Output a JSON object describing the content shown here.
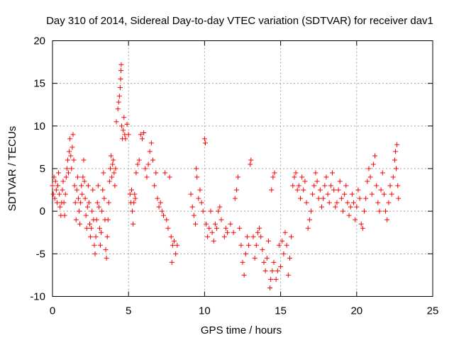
{
  "chart_data": {
    "type": "scatter",
    "title": "Day 310 of 2014, Sidereal Day-to-day VTEC variation (SDTVAR) for receiver dav1",
    "xlabel": "GPS time / hours",
    "ylabel": "SDTVAR / TECUs",
    "xlim": [
      0,
      25
    ],
    "ylim": [
      -10,
      20
    ],
    "xticks": [
      0,
      5,
      10,
      15,
      20,
      25
    ],
    "yticks": [
      -10,
      -5,
      0,
      5,
      10,
      15,
      20
    ],
    "xtick_labels": [
      "0",
      "5",
      "10",
      "15",
      "20",
      "25"
    ],
    "ytick_labels": [
      "-10",
      "-5",
      "0",
      "5",
      "10",
      "15",
      "20"
    ],
    "grid": true,
    "marker": "+",
    "color": "#ff0000",
    "series": [
      {
        "name": "SDTVAR",
        "points": [
          [
            0.0,
            3.0
          ],
          [
            0.05,
            2.0
          ],
          [
            0.1,
            4.0
          ],
          [
            0.15,
            1.5
          ],
          [
            0.2,
            3.5
          ],
          [
            0.25,
            2.5
          ],
          [
            0.3,
            1.0
          ],
          [
            0.35,
            3.0
          ],
          [
            0.4,
            4.5
          ],
          [
            0.45,
            2.0
          ],
          [
            0.5,
            0.5
          ],
          [
            0.55,
            -0.5
          ],
          [
            0.6,
            1.0
          ],
          [
            0.65,
            2.5
          ],
          [
            0.7,
            3.5
          ],
          [
            0.75,
            1.0
          ],
          [
            0.8,
            -0.5
          ],
          [
            0.85,
            2.0
          ],
          [
            0.9,
            4.0
          ],
          [
            0.95,
            5.0
          ],
          [
            1.0,
            6.0
          ],
          [
            1.05,
            4.5
          ],
          [
            1.1,
            7.0
          ],
          [
            1.15,
            8.5
          ],
          [
            1.2,
            6.5
          ],
          [
            1.25,
            5.0
          ],
          [
            1.3,
            7.5
          ],
          [
            1.35,
            9.0
          ],
          [
            1.4,
            6.0
          ],
          [
            1.45,
            3.0
          ],
          [
            1.5,
            1.0
          ],
          [
            1.55,
            -1.0
          ],
          [
            1.6,
            2.5
          ],
          [
            1.65,
            4.0
          ],
          [
            1.7,
            1.5
          ],
          [
            1.75,
            0.0
          ],
          [
            1.8,
            -1.5
          ],
          [
            1.85,
            1.0
          ],
          [
            1.9,
            3.0
          ],
          [
            1.95,
            2.0
          ],
          [
            2.0,
            4.0
          ],
          [
            2.05,
            6.0
          ],
          [
            2.1,
            3.5
          ],
          [
            2.15,
            1.5
          ],
          [
            2.2,
            -0.5
          ],
          [
            2.25,
            -2.0
          ],
          [
            2.3,
            0.5
          ],
          [
            2.35,
            3.0
          ],
          [
            2.4,
            1.0
          ],
          [
            2.45,
            -1.5
          ],
          [
            2.5,
            -3.0
          ],
          [
            2.55,
            -2.0
          ],
          [
            2.6,
            0.0
          ],
          [
            2.65,
            2.5
          ],
          [
            2.7,
            -1.0
          ],
          [
            2.75,
            -4.0
          ],
          [
            2.8,
            -5.0
          ],
          [
            2.85,
            -3.0
          ],
          [
            2.9,
            -1.0
          ],
          [
            2.95,
            1.0
          ],
          [
            3.0,
            3.0
          ],
          [
            3.05,
            0.5
          ],
          [
            3.1,
            -2.0
          ],
          [
            3.15,
            -4.0
          ],
          [
            3.2,
            -2.5
          ],
          [
            3.25,
            0.0
          ],
          [
            3.3,
            2.5
          ],
          [
            3.35,
            4.5
          ],
          [
            3.4,
            1.5
          ],
          [
            3.45,
            -1.0
          ],
          [
            3.5,
            -4.5
          ],
          [
            3.55,
            -5.5
          ],
          [
            3.6,
            -3.0
          ],
          [
            3.65,
            -1.0
          ],
          [
            3.7,
            1.0
          ],
          [
            3.75,
            3.5
          ],
          [
            3.8,
            5.0
          ],
          [
            3.85,
            6.5
          ],
          [
            3.9,
            4.0
          ],
          [
            3.95,
            5.5
          ],
          [
            4.0,
            6.0
          ],
          [
            4.05,
            4.5
          ],
          [
            4.1,
            3.0
          ],
          [
            4.15,
            5.0
          ],
          [
            4.2,
            10.5
          ],
          [
            4.3,
            12.0
          ],
          [
            4.35,
            12.8
          ],
          [
            4.4,
            13.5
          ],
          [
            4.45,
            14.5
          ],
          [
            4.48,
            15.5
          ],
          [
            4.5,
            16.5
          ],
          [
            4.52,
            17.2
          ],
          [
            4.55,
            10.0
          ],
          [
            4.6,
            8.5
          ],
          [
            4.65,
            9.5
          ],
          [
            4.7,
            11.0
          ],
          [
            4.75,
            9.0
          ],
          [
            4.8,
            8.5
          ],
          [
            4.9,
            10.2
          ],
          [
            5.0,
            9.0
          ],
          [
            5.1,
            2.0
          ],
          [
            5.15,
            1.0
          ],
          [
            5.2,
            2.5
          ],
          [
            5.25,
            0.0
          ],
          [
            5.3,
            -1.5
          ],
          [
            5.35,
            1.0
          ],
          [
            5.4,
            2.0
          ],
          [
            5.45,
            1.5
          ],
          [
            5.5,
            4.5
          ],
          [
            5.6,
            5.5
          ],
          [
            5.7,
            6.0
          ],
          [
            5.8,
            9.0
          ],
          [
            5.9,
            8.5
          ],
          [
            6.0,
            9.2
          ],
          [
            6.1,
            5.0
          ],
          [
            6.2,
            4.0
          ],
          [
            6.3,
            5.5
          ],
          [
            6.4,
            7.0
          ],
          [
            6.5,
            8.0
          ],
          [
            6.6,
            6.0
          ],
          [
            6.7,
            3.0
          ],
          [
            6.8,
            4.5
          ],
          [
            6.9,
            1.5
          ],
          [
            7.0,
            0.5
          ],
          [
            7.1,
            1.0
          ],
          [
            7.2,
            0.0
          ],
          [
            7.3,
            -0.5
          ],
          [
            7.4,
            4.5
          ],
          [
            7.5,
            -1.0
          ],
          [
            7.6,
            -2.0
          ],
          [
            7.7,
            4.0
          ],
          [
            7.8,
            -3.0
          ],
          [
            7.85,
            -6.0
          ],
          [
            7.9,
            -4.0
          ],
          [
            8.0,
            -3.5
          ],
          [
            8.1,
            -5.0
          ],
          [
            8.2,
            -4.0
          ],
          [
            9.1,
            2.0
          ],
          [
            9.2,
            0.5
          ],
          [
            9.3,
            -0.5
          ],
          [
            9.4,
            -1.5
          ],
          [
            9.45,
            5.0
          ],
          [
            9.5,
            4.0
          ],
          [
            9.6,
            1.5
          ],
          [
            9.7,
            2.5
          ],
          [
            9.8,
            1.0
          ],
          [
            9.9,
            0.0
          ],
          [
            10.0,
            8.5
          ],
          [
            10.05,
            8.0
          ],
          [
            10.1,
            -1.5
          ],
          [
            10.2,
            -3.0
          ],
          [
            10.3,
            -2.0
          ],
          [
            10.4,
            0.0
          ],
          [
            10.5,
            -2.5
          ],
          [
            10.6,
            -3.5
          ],
          [
            10.7,
            -1.5
          ],
          [
            10.8,
            -2.0
          ],
          [
            10.9,
            0.0
          ],
          [
            11.0,
            0.5
          ],
          [
            11.1,
            -1.0
          ],
          [
            11.3,
            -3.0
          ],
          [
            11.4,
            -2.0
          ],
          [
            11.5,
            -2.5
          ],
          [
            11.7,
            -1.5
          ],
          [
            11.9,
            -2.5
          ],
          [
            12.0,
            1.5
          ],
          [
            12.1,
            2.5
          ],
          [
            12.2,
            4.0
          ],
          [
            12.3,
            -2.0
          ],
          [
            12.4,
            -4.0
          ],
          [
            12.5,
            -6.0
          ],
          [
            12.6,
            -7.5
          ],
          [
            12.7,
            -5.0
          ],
          [
            12.8,
            -3.0
          ],
          [
            12.9,
            -4.0
          ],
          [
            13.0,
            5.5
          ],
          [
            13.05,
            6.0
          ],
          [
            13.2,
            -3.0
          ],
          [
            13.3,
            -5.5
          ],
          [
            13.4,
            -4.0
          ],
          [
            13.5,
            -2.5
          ],
          [
            13.6,
            -2.0
          ],
          [
            13.7,
            -3.0
          ],
          [
            13.8,
            -4.5
          ],
          [
            13.9,
            -6.0
          ],
          [
            14.0,
            -7.0
          ],
          [
            14.1,
            -5.5
          ],
          [
            14.2,
            -3.5
          ],
          [
            14.3,
            -9.0
          ],
          [
            14.35,
            -8.0
          ],
          [
            14.4,
            2.5
          ],
          [
            14.45,
            -7.0
          ],
          [
            14.5,
            4.0
          ],
          [
            14.55,
            -6.0
          ],
          [
            14.6,
            4.5
          ],
          [
            14.7,
            -8.0
          ],
          [
            14.8,
            -7.0
          ],
          [
            14.9,
            -4.0
          ],
          [
            15.0,
            -6.5
          ],
          [
            15.1,
            -3.5
          ],
          [
            15.2,
            -5.0
          ],
          [
            15.3,
            -2.5
          ],
          [
            15.4,
            -4.0
          ],
          [
            15.5,
            -7.5
          ],
          [
            15.6,
            -5.5
          ],
          [
            15.7,
            -3.0
          ],
          [
            15.8,
            3.0
          ],
          [
            15.9,
            4.0
          ],
          [
            16.0,
            4.5
          ],
          [
            16.1,
            2.5
          ],
          [
            16.2,
            3.0
          ],
          [
            16.3,
            1.5
          ],
          [
            16.4,
            4.0
          ],
          [
            16.5,
            2.5
          ],
          [
            16.6,
            3.5
          ],
          [
            16.7,
            1.0
          ],
          [
            16.8,
            -2.0
          ],
          [
            16.9,
            -1.0
          ],
          [
            17.0,
            0.0
          ],
          [
            17.1,
            2.0
          ],
          [
            17.2,
            3.0
          ],
          [
            17.3,
            4.5
          ],
          [
            17.4,
            3.5
          ],
          [
            17.5,
            1.5
          ],
          [
            17.6,
            2.5
          ],
          [
            17.7,
            0.5
          ],
          [
            17.8,
            1.5
          ],
          [
            17.9,
            3.0
          ],
          [
            18.0,
            4.0
          ],
          [
            18.1,
            2.0
          ],
          [
            18.2,
            1.0
          ],
          [
            18.3,
            3.0
          ],
          [
            18.4,
            4.5
          ],
          [
            18.5,
            2.5
          ],
          [
            18.6,
            0.5
          ],
          [
            18.7,
            1.0
          ],
          [
            18.8,
            2.5
          ],
          [
            18.9,
            3.5
          ],
          [
            19.0,
            1.5
          ],
          [
            19.1,
            0.0
          ],
          [
            19.2,
            2.0
          ],
          [
            19.3,
            3.0
          ],
          [
            19.4,
            1.0
          ],
          [
            19.5,
            -0.5
          ],
          [
            19.6,
            0.5
          ],
          [
            19.7,
            2.0
          ],
          [
            19.8,
            1.0
          ],
          [
            19.9,
            -1.0
          ],
          [
            20.0,
            0.5
          ],
          [
            20.1,
            2.5
          ],
          [
            20.2,
            1.5
          ],
          [
            20.3,
            -1.5
          ],
          [
            20.4,
            -2.0
          ],
          [
            20.5,
            0.0
          ],
          [
            20.6,
            1.5
          ],
          [
            20.7,
            3.5
          ],
          [
            20.8,
            5.0
          ],
          [
            20.9,
            4.0
          ],
          [
            21.0,
            2.0
          ],
          [
            21.1,
            5.5
          ],
          [
            21.2,
            6.5
          ],
          [
            21.3,
            3.0
          ],
          [
            21.4,
            1.0
          ],
          [
            21.5,
            0.0
          ],
          [
            21.6,
            2.5
          ],
          [
            21.7,
            4.5
          ],
          [
            21.8,
            2.0
          ],
          [
            21.9,
            0.0
          ],
          [
            22.0,
            -1.0
          ],
          [
            22.1,
            1.0
          ],
          [
            22.2,
            3.0
          ],
          [
            22.3,
            2.0
          ],
          [
            22.4,
            4.0
          ],
          [
            22.5,
            6.0
          ],
          [
            22.55,
            7.0
          ],
          [
            22.6,
            5.0
          ],
          [
            22.65,
            7.8
          ],
          [
            22.7,
            3.0
          ],
          [
            22.75,
            1.5
          ]
        ]
      }
    ]
  }
}
